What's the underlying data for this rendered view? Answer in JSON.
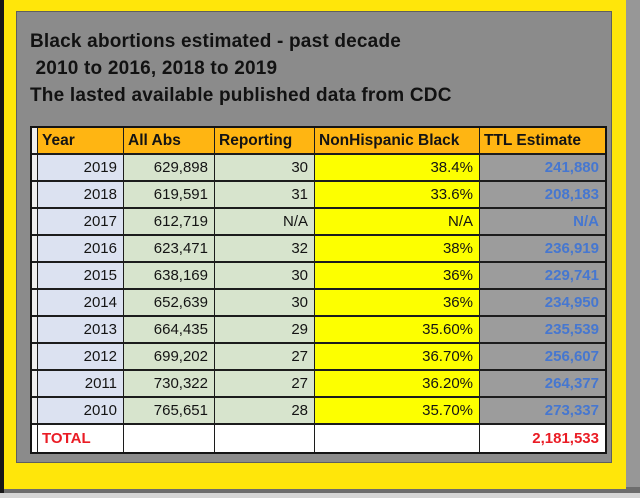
{
  "title": {
    "line1": "Black abortions estimated - past decade",
    "line2": " 2010 to 2016, 2018 to 2019",
    "line3": "The lasted available published data from CDC"
  },
  "table": {
    "headers": [
      "Year",
      "All Abs",
      "Reporting",
      "NonHispanic Black",
      "TTL Estimate"
    ],
    "rows": [
      {
        "year": "2019",
        "all_abs": "629,898",
        "reporting": "30",
        "nonhispanic_black": "38.4%",
        "ttl_estimate": "241,880"
      },
      {
        "year": "2018",
        "all_abs": "619,591",
        "reporting": "31",
        "nonhispanic_black": "33.6%",
        "ttl_estimate": "208,183"
      },
      {
        "year": "2017",
        "all_abs": "612,719",
        "reporting": "N/A",
        "nonhispanic_black": "N/A",
        "ttl_estimate": "N/A"
      },
      {
        "year": "2016",
        "all_abs": "623,471",
        "reporting": "32",
        "nonhispanic_black": "38%",
        "ttl_estimate": "236,919"
      },
      {
        "year": "2015",
        "all_abs": "638,169",
        "reporting": "30",
        "nonhispanic_black": "36%",
        "ttl_estimate": "229,741"
      },
      {
        "year": "2014",
        "all_abs": "652,639",
        "reporting": "30",
        "nonhispanic_black": "36%",
        "ttl_estimate": "234,950"
      },
      {
        "year": "2013",
        "all_abs": "664,435",
        "reporting": "29",
        "nonhispanic_black": "35.60%",
        "ttl_estimate": "235,539"
      },
      {
        "year": "2012",
        "all_abs": "699,202",
        "reporting": "27",
        "nonhispanic_black": "36.70%",
        "ttl_estimate": "256,607"
      },
      {
        "year": "2011",
        "all_abs": "730,322",
        "reporting": "27",
        "nonhispanic_black": "36.20%",
        "ttl_estimate": "264,377"
      },
      {
        "year": "2010",
        "all_abs": "765,651",
        "reporting": "28",
        "nonhispanic_black": "35.70%",
        "ttl_estimate": "273,337"
      }
    ],
    "total": {
      "label": "TOTAL",
      "value": "2,181,533"
    }
  },
  "chart_data": {
    "type": "table",
    "title": "Black abortions estimated - past decade, 2010 to 2016, 2018 to 2019 — The lasted available published data from CDC",
    "columns": [
      "Year",
      "All Abs",
      "Reporting",
      "NonHispanic Black",
      "TTL Estimate"
    ],
    "rows": [
      [
        "2019",
        "629,898",
        "30",
        "38.4%",
        "241,880"
      ],
      [
        "2018",
        "619,591",
        "31",
        "33.6%",
        "208,183"
      ],
      [
        "2017",
        "612,719",
        "N/A",
        "N/A",
        "N/A"
      ],
      [
        "2016",
        "623,471",
        "32",
        "38%",
        "236,919"
      ],
      [
        "2015",
        "638,169",
        "30",
        "36%",
        "229,741"
      ],
      [
        "2014",
        "652,639",
        "30",
        "36%",
        "234,950"
      ],
      [
        "2013",
        "664,435",
        "29",
        "35.60%",
        "235,539"
      ],
      [
        "2012",
        "699,202",
        "27",
        "36.70%",
        "256,607"
      ],
      [
        "2011",
        "730,322",
        "27",
        "36.20%",
        "264,377"
      ],
      [
        "2010",
        "765,651",
        "28",
        "35.70%",
        "273,337"
      ]
    ],
    "total_row": [
      "TOTAL",
      "",
      "",
      "",
      "2,181,533"
    ],
    "layout_hints": {
      "header_bg": "#ffb512",
      "year_col_bg": "#dce2f1",
      "counts_col_bg": "#d7e4cd",
      "percent_col_bg": "#fdff00",
      "estimate_col_bg": "#9c9c9c",
      "estimate_text_color": "#4677d0",
      "total_text_color": "#ea1c25",
      "panel_bg": "#8b8b8b",
      "frame_color": "#ffe60a"
    }
  }
}
